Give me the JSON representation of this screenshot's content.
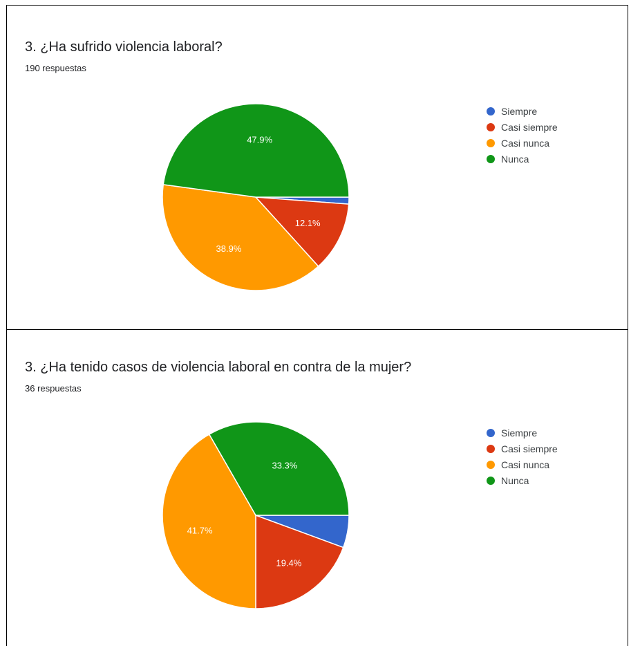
{
  "chart_data": [
    {
      "type": "pie",
      "title": "3. ¿Ha sufrido violencia laboral?",
      "subtitle": "190 respuestas",
      "categories": [
        "Siempre",
        "Casi siempre",
        "Casi nunca",
        "Nunca"
      ],
      "values": [
        1.2,
        12.1,
        38.9,
        47.9
      ],
      "data_labels": [
        "",
        "12.1%",
        "38.9%",
        "47.9%"
      ],
      "colors": [
        "#3366cc",
        "#dc3912",
        "#ff9900",
        "#109618"
      ],
      "legend_position": "right"
    },
    {
      "type": "pie",
      "title": "3. ¿Ha tenido casos de violencia laboral en contra de la mujer?",
      "subtitle": "36 respuestas",
      "categories": [
        "Siempre",
        "Casi siempre",
        "Casi nunca",
        "Nunca"
      ],
      "values": [
        5.6,
        19.4,
        41.7,
        33.3
      ],
      "data_labels": [
        "",
        "19.4%",
        "41.7%",
        "33.3%"
      ],
      "colors": [
        "#3366cc",
        "#dc3912",
        "#ff9900",
        "#109618"
      ],
      "legend_position": "right"
    }
  ]
}
